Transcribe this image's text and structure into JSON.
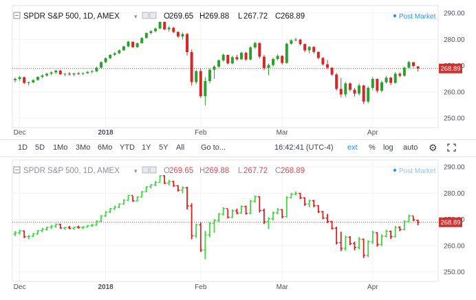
{
  "chart_data": [
    {
      "type": "candlestick",
      "panel": "top",
      "symbol_label": "SPDR S&P 500, 1D, AMEX",
      "ohlc_label": {
        "o_prefix": "O",
        "o": "269.65",
        "h_prefix": "H",
        "h": "269.88",
        "l_prefix": "L",
        "l": "267.72",
        "c_prefix": "C",
        "c": "268.89"
      },
      "post_market_label": "Post Market",
      "last_price_label": "268.89",
      "last_price": 268.89,
      "ylim": [
        245,
        291
      ],
      "y_ticks": [
        "290.00",
        "280.00",
        "270.00",
        "260.00",
        "250.00"
      ],
      "y_tick_values": [
        290,
        280,
        270,
        260,
        250
      ],
      "x_labels": [
        "Dec",
        "2018",
        "Feb",
        "Mar",
        "Apr"
      ],
      "x_label_index": [
        1,
        20,
        41,
        59,
        79
      ],
      "grid": true,
      "up_color": "#2ca02c",
      "down_color": "#d62728",
      "bars": [
        [
          264.4,
          265.5,
          263.6,
          264.9
        ],
        [
          264.9,
          266.1,
          264.2,
          265.6
        ],
        [
          265.6,
          265.8,
          262.9,
          263.4
        ],
        [
          263.4,
          264.0,
          262.4,
          263.6
        ],
        [
          263.6,
          264.8,
          263.3,
          264.5
        ],
        [
          264.5,
          265.9,
          264.2,
          265.7
        ],
        [
          265.7,
          266.7,
          265.1,
          266.2
        ],
        [
          266.2,
          267.2,
          265.7,
          266.9
        ],
        [
          266.9,
          267.9,
          266.3,
          267.4
        ],
        [
          267.4,
          268.4,
          266.8,
          268.1
        ],
        [
          268.1,
          268.3,
          266.4,
          266.7
        ],
        [
          266.7,
          267.1,
          266.0,
          266.9
        ],
        [
          266.9,
          267.5,
          266.2,
          266.6
        ],
        [
          266.6,
          267.2,
          266.0,
          267.0
        ],
        [
          267.0,
          267.6,
          266.5,
          266.9
        ],
        [
          266.9,
          267.4,
          266.3,
          267.1
        ],
        [
          267.1,
          267.9,
          266.9,
          267.6
        ],
        [
          267.6,
          268.3,
          267.1,
          267.8
        ],
        [
          267.8,
          269.6,
          267.6,
          269.2
        ],
        [
          269.2,
          271.6,
          269.0,
          271.3
        ],
        [
          271.3,
          273.1,
          270.9,
          272.8
        ],
        [
          272.8,
          274.3,
          272.4,
          274.1
        ],
        [
          274.1,
          275.2,
          273.6,
          274.7
        ],
        [
          274.7,
          276.1,
          274.3,
          275.8
        ],
        [
          275.8,
          277.6,
          275.6,
          277.3
        ],
        [
          277.3,
          279.3,
          277.0,
          279.1
        ],
        [
          279.1,
          278.9,
          276.7,
          277.0
        ],
        [
          277.0,
          278.8,
          276.8,
          278.5
        ],
        [
          278.5,
          280.8,
          278.4,
          280.5
        ],
        [
          280.5,
          282.6,
          280.3,
          282.4
        ],
        [
          282.4,
          283.4,
          281.8,
          283.1
        ],
        [
          283.1,
          284.6,
          282.6,
          284.1
        ],
        [
          284.1,
          286.8,
          283.9,
          286.6
        ],
        [
          286.6,
          286.8,
          283.4,
          283.8
        ],
        [
          283.8,
          285.1,
          282.9,
          284.4
        ],
        [
          284.4,
          284.7,
          282.3,
          282.8
        ],
        [
          282.8,
          283.0,
          280.6,
          281.1
        ],
        [
          281.1,
          282.6,
          279.9,
          282.0
        ],
        [
          282.0,
          282.4,
          273.8,
          275.1
        ],
        [
          275.1,
          276.1,
          262.4,
          263.7
        ],
        [
          263.7,
          268.4,
          262.9,
          267.9
        ],
        [
          267.9,
          268.8,
          257.6,
          258.3
        ],
        [
          258.3,
          265.6,
          254.8,
          264.1
        ],
        [
          264.1,
          268.9,
          263.2,
          268.4
        ],
        [
          268.4,
          270.1,
          264.9,
          269.6
        ],
        [
          269.6,
          272.4,
          269.1,
          272.0
        ],
        [
          272.0,
          274.6,
          271.4,
          274.1
        ],
        [
          274.1,
          273.9,
          270.4,
          270.8
        ],
        [
          270.8,
          273.8,
          270.5,
          273.2
        ],
        [
          273.2,
          274.1,
          271.9,
          272.4
        ],
        [
          272.4,
          275.3,
          272.1,
          274.9
        ],
        [
          274.9,
          275.2,
          271.8,
          272.3
        ],
        [
          272.3,
          277.4,
          271.9,
          276.9
        ],
        [
          276.9,
          279.1,
          276.3,
          278.6
        ],
        [
          278.6,
          278.8,
          272.6,
          273.4
        ],
        [
          273.4,
          274.1,
          268.2,
          269.1
        ],
        [
          269.1,
          270.8,
          266.3,
          270.2
        ],
        [
          270.2,
          273.0,
          269.6,
          272.5
        ],
        [
          272.5,
          274.3,
          271.9,
          273.7
        ],
        [
          273.7,
          273.9,
          270.4,
          271.0
        ],
        [
          271.0,
          278.8,
          270.7,
          278.3
        ],
        [
          278.3,
          280.1,
          277.9,
          279.6
        ],
        [
          279.6,
          280.6,
          279.2,
          279.9
        ],
        [
          279.9,
          280.1,
          277.7,
          278.2
        ],
        [
          278.2,
          278.4,
          275.1,
          275.8
        ],
        [
          275.8,
          277.5,
          274.6,
          277.1
        ],
        [
          277.1,
          277.4,
          274.6,
          275.2
        ],
        [
          275.2,
          275.4,
          272.4,
          272.9
        ],
        [
          272.9,
          273.2,
          270.0,
          270.5
        ],
        [
          270.5,
          272.1,
          268.6,
          269.2
        ],
        [
          269.2,
          269.4,
          266.1,
          266.6
        ],
        [
          266.6,
          267.2,
          260.4,
          261.1
        ],
        [
          261.1,
          265.3,
          257.9,
          259.0
        ],
        [
          259.0,
          263.8,
          258.1,
          263.2
        ],
        [
          263.2,
          263.6,
          260.2,
          260.8
        ],
        [
          260.8,
          261.5,
          258.2,
          259.3
        ],
        [
          259.3,
          263.2,
          258.6,
          262.4
        ],
        [
          262.4,
          262.7,
          255.3,
          256.3
        ],
        [
          256.3,
          262.1,
          255.6,
          261.5
        ],
        [
          261.5,
          265.7,
          260.6,
          264.9
        ],
        [
          264.9,
          265.1,
          259.6,
          260.4
        ],
        [
          260.4,
          264.3,
          259.8,
          263.6
        ],
        [
          263.6,
          266.1,
          263.1,
          265.4
        ],
        [
          265.4,
          265.7,
          262.5,
          263.4
        ],
        [
          263.4,
          267.5,
          263.1,
          266.9
        ],
        [
          266.9,
          267.4,
          265.5,
          266.1
        ],
        [
          266.1,
          269.6,
          265.8,
          269.2
        ],
        [
          269.2,
          271.8,
          268.7,
          271.3
        ],
        [
          271.3,
          271.1,
          269.3,
          269.8
        ],
        [
          269.65,
          269.88,
          267.72,
          268.89
        ]
      ]
    },
    {
      "type": "ohlc",
      "panel": "bottom",
      "symbol_label": "SPDR S&P 500, 1D, AMEX",
      "ohlc_label": {
        "o_prefix": "O",
        "o": "269.65",
        "h_prefix": "H",
        "h": "269.88",
        "l_prefix": "L",
        "l": "267.72",
        "c_prefix": "C",
        "c": "268.89"
      },
      "post_market_label": "Post Market",
      "last_price_label": "268.89",
      "last_price": 268.89,
      "ylim": [
        245,
        291
      ],
      "y_ticks": [
        "290.00",
        "280.00",
        "270.00",
        "260.00",
        "250.00"
      ],
      "y_tick_values": [
        290,
        280,
        270,
        260,
        250
      ],
      "x_labels": [
        "Dec",
        "2018",
        "Feb",
        "Mar",
        "Apr"
      ],
      "x_label_index": [
        1,
        20,
        41,
        59,
        79
      ],
      "grid": true,
      "up_color": "#41d641",
      "down_color": "#e21b1b",
      "bars_same_as_top": true
    }
  ],
  "toolbar": {
    "ranges": [
      "1D",
      "5D",
      "1Mo",
      "3Mo",
      "6Mo",
      "YTD",
      "1Y",
      "5Y",
      "All"
    ],
    "goto_label": "Go to...",
    "time_label": "16:42:41 (UTC-4)",
    "ext_label": "ext",
    "percent_label": "%",
    "log_label": "log",
    "auto_label": "auto",
    "settings_icon": "gear-icon",
    "fullscreen_icon": "fullscreen-icon"
  }
}
